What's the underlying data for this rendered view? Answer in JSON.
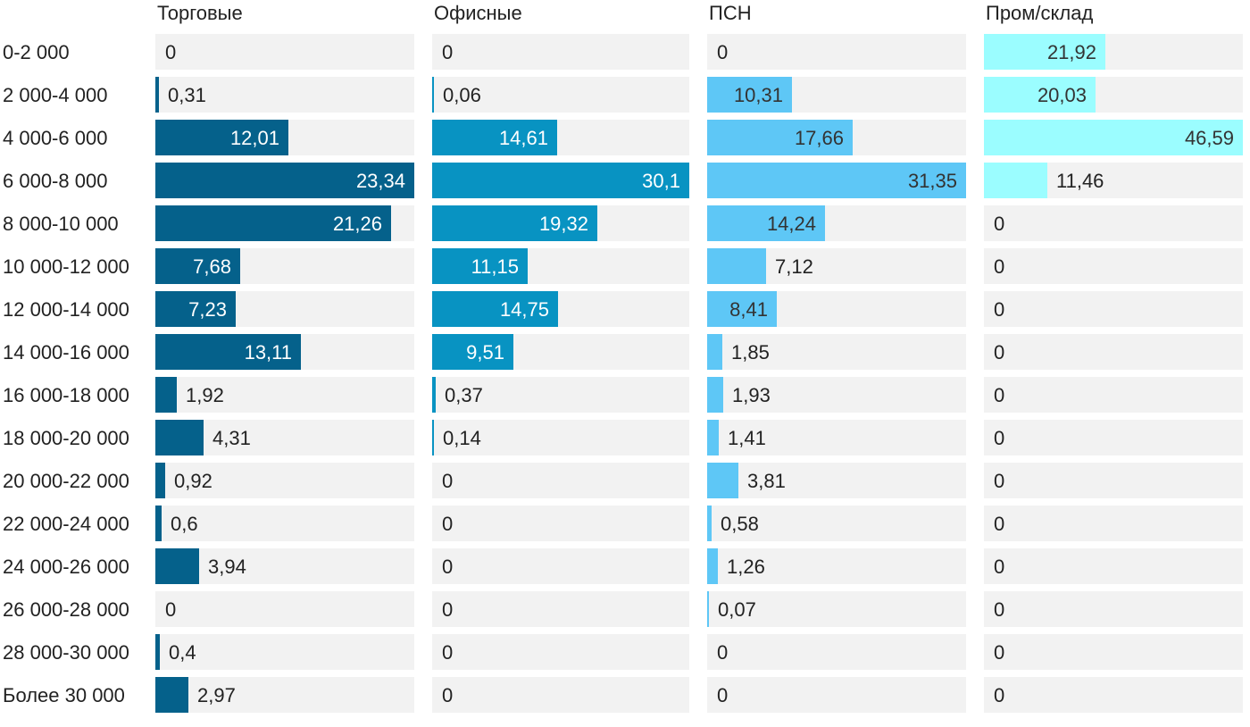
{
  "chart_data": {
    "type": "bar",
    "orientation": "horizontal",
    "layout": "small-multiples",
    "categories": [
      "0-2 000",
      "2 000-4 000",
      "4 000-6 000",
      "6 000-8 000",
      "8 000-10 000",
      "10 000-12 000",
      "12 000-14 000",
      "14 000-16 000",
      "16 000-18 000",
      "18 000-20 000",
      "20 000-22 000",
      "22 000-24 000",
      "24 000-26 000",
      "26 000-28 000",
      "28 000-30 000",
      "Более 30 000"
    ],
    "series": [
      {
        "name": "Торговые",
        "color": "#05618b",
        "values": [
          0,
          0.31,
          12.01,
          23.34,
          21.26,
          7.68,
          7.23,
          13.11,
          1.92,
          4.31,
          0.92,
          0.6,
          3.94,
          0,
          0.4,
          2.97
        ],
        "labels": [
          "0",
          "0,31",
          "12,01",
          "23,34",
          "21,26",
          "7,68",
          "7,23",
          "13,11",
          "1,92",
          "4,31",
          "0,92",
          "0,6",
          "3,94",
          "0",
          "0,4",
          "2,97"
        ]
      },
      {
        "name": "Офисные",
        "color": "#0893c2",
        "values": [
          0,
          0.06,
          14.61,
          30.1,
          19.32,
          11.15,
          14.75,
          9.51,
          0.37,
          0.14,
          0,
          0,
          0,
          0,
          0,
          0
        ],
        "labels": [
          "0",
          "0,06",
          "14,61",
          "30,1",
          "19,32",
          "11,15",
          "14,75",
          "9,51",
          "0,37",
          "0,14",
          "0",
          "0",
          "0",
          "0",
          "0",
          "0"
        ]
      },
      {
        "name": "ПСН",
        "color": "#5ec7f6",
        "values": [
          0,
          10.31,
          17.66,
          31.35,
          14.24,
          7.12,
          8.41,
          1.85,
          1.93,
          1.41,
          3.81,
          0.58,
          1.26,
          0.07,
          0,
          0
        ],
        "labels": [
          "0",
          "10,31",
          "17,66",
          "31,35",
          "14,24",
          "7,12",
          "8,41",
          "1,85",
          "1,93",
          "1,41",
          "3,81",
          "0,58",
          "1,26",
          "0,07",
          "0",
          "0"
        ]
      },
      {
        "name": "Пром/склад",
        "color": "#9bfdff",
        "values": [
          21.92,
          20.03,
          46.59,
          11.46,
          0,
          0,
          0,
          0,
          0,
          0,
          0,
          0,
          0,
          0,
          0,
          0
        ],
        "labels": [
          "21,92",
          "20,03",
          "46,59",
          "11,46",
          "0",
          "0",
          "0",
          "0",
          "0",
          "0",
          "0",
          "0",
          "0",
          "0",
          "0",
          "0"
        ]
      }
    ],
    "xlim": [
      [
        0,
        23.34
      ],
      [
        0,
        30.1
      ],
      [
        0,
        31.35
      ],
      [
        0,
        46.59
      ]
    ],
    "background_bar_color": "#f2f2f2",
    "label_color_inside_dark": "#ffffff",
    "label_color_inside_light": "#333333",
    "label_color_outside": "#222222"
  }
}
